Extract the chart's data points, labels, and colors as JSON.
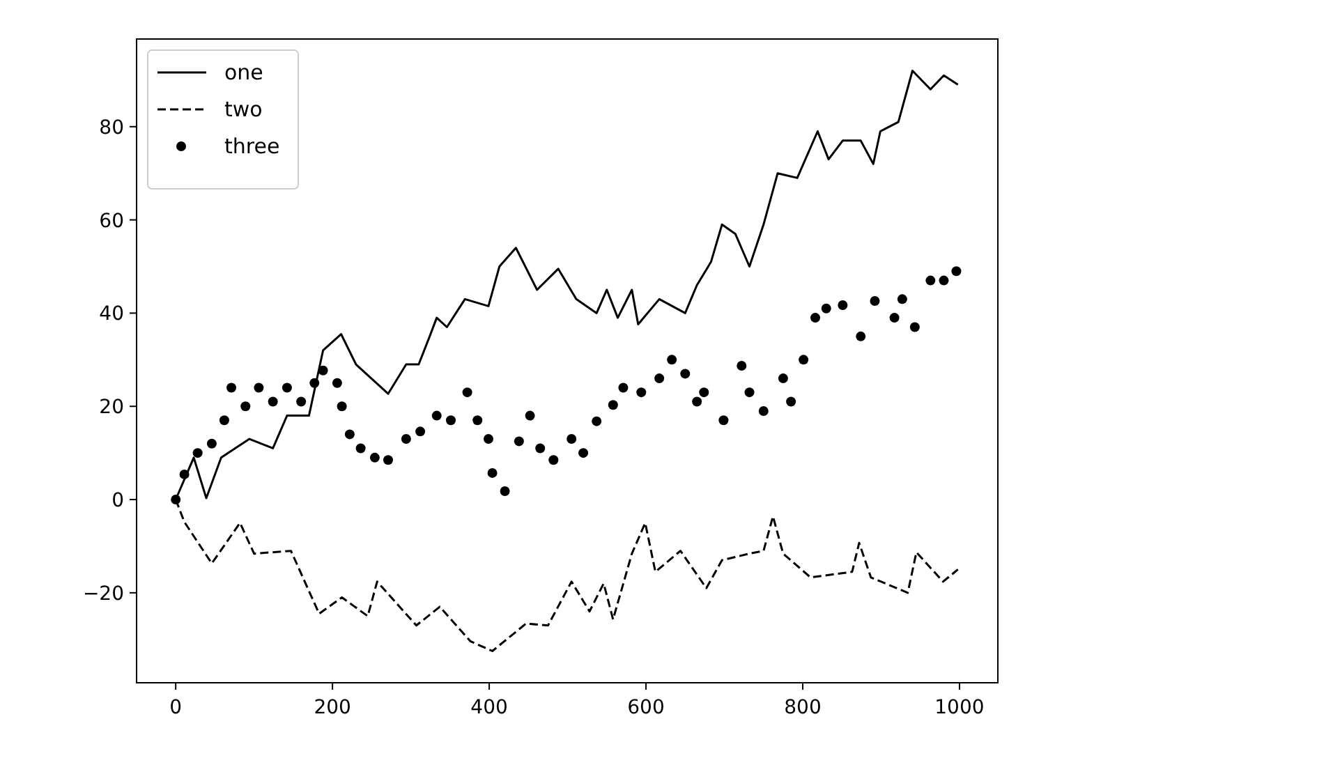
{
  "chart_data": {
    "type": "line",
    "xlim": [
      -49.95,
      1048.95
    ],
    "xticks": [
      0,
      200,
      400,
      600,
      800,
      1000
    ],
    "ylim": [
      -39.3,
      98.8
    ],
    "yticks": [
      -20,
      0,
      20,
      40,
      60,
      80
    ],
    "grid": false,
    "legend": "top left",
    "series": [
      {
        "name": "one",
        "line_style": "solid",
        "marker": "none",
        "color": "#000000",
        "x": [
          0,
          23,
          39,
          58,
          94,
          124,
          142,
          170,
          188,
          211,
          230,
          271,
          294,
          310,
          324,
          333,
          346,
          369,
          399,
          413,
          434,
          461,
          488,
          511,
          537,
          550,
          564,
          582,
          590,
          617,
          650,
          665,
          683,
          697,
          714,
          732,
          750,
          768,
          793,
          819,
          833,
          851,
          874,
          890,
          899,
          922,
          940,
          963,
          980,
          998
        ],
        "values": [
          0,
          9,
          0.3,
          9,
          13,
          11,
          18,
          18,
          32,
          35.5,
          29,
          22.7,
          29,
          29,
          35,
          39,
          37,
          43,
          41.5,
          50,
          54,
          45,
          49.5,
          43,
          40,
          45,
          39,
          45,
          37.6,
          43,
          40,
          46,
          51,
          59,
          57,
          50,
          59,
          70,
          69,
          79,
          73,
          77,
          77,
          72,
          79,
          81,
          92,
          88,
          91,
          89
        ]
      },
      {
        "name": "two",
        "line_style": "dashed",
        "marker": "none",
        "color": "#000000",
        "x": [
          0,
          11,
          46,
          82,
          100,
          147,
          183,
          212,
          245,
          257,
          307,
          337,
          376,
          404,
          447,
          475,
          505,
          528,
          546,
          558,
          582,
          599,
          612,
          644,
          677,
          697,
          732,
          750,
          762,
          775,
          810,
          863,
          872,
          887,
          934,
          945,
          979,
          998
        ],
        "values": [
          0,
          -4.8,
          -13.7,
          -5,
          -11.6,
          -11,
          -24.5,
          -21,
          -25,
          -17.6,
          -27,
          -23,
          -30.4,
          -32.5,
          -26.6,
          -27,
          -17.6,
          -24,
          -18,
          -25.7,
          -11.6,
          -5,
          -15.5,
          -11,
          -19,
          -13,
          -11.6,
          -11,
          -3.6,
          -11.6,
          -16.7,
          -15.5,
          -9.3,
          -16.7,
          -20,
          -11.3,
          -17.6,
          -15
        ]
      },
      {
        "name": "three",
        "type": "scatter",
        "marker": "circle",
        "color": "#000000",
        "x": [
          0,
          11,
          28,
          46,
          62,
          71,
          89,
          106,
          124,
          142,
          160,
          177,
          188,
          206,
          212,
          222,
          236,
          254,
          271,
          294,
          312,
          333,
          351,
          372,
          385,
          399,
          404,
          420,
          438,
          452,
          465,
          482,
          505,
          520,
          537,
          558,
          571,
          594,
          617,
          633,
          650,
          665,
          674,
          699,
          722,
          732,
          750,
          775,
          785,
          801,
          816,
          830,
          851,
          874,
          892,
          917,
          927,
          943,
          963,
          980,
          996
        ],
        "values": [
          0,
          5.4,
          10,
          12,
          17,
          24,
          20,
          24,
          21,
          24,
          21,
          25,
          27.7,
          25,
          20,
          14,
          11,
          9,
          8.5,
          13,
          14.6,
          18,
          17,
          23,
          17,
          13,
          5.7,
          1.8,
          12.5,
          18,
          11,
          8.5,
          13,
          10,
          16.8,
          20.3,
          24,
          23,
          26,
          30,
          27,
          21,
          23,
          17,
          28.7,
          23,
          19,
          26,
          21,
          30,
          39,
          41,
          41.7,
          35,
          42.6,
          39,
          43,
          37,
          47,
          47,
          49
        ]
      }
    ]
  }
}
